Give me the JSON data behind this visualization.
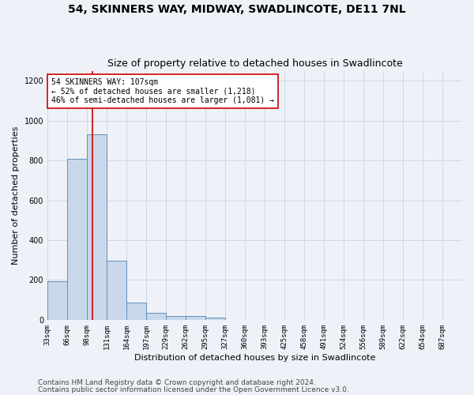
{
  "title": "54, SKINNERS WAY, MIDWAY, SWADLINCOTE, DE11 7NL",
  "subtitle": "Size of property relative to detached houses in Swadlincote",
  "xlabel": "Distribution of detached houses by size in Swadlincote",
  "ylabel": "Number of detached properties",
  "bin_edges": [
    33,
    66,
    98,
    131,
    164,
    197,
    229,
    262,
    295,
    327,
    360,
    393,
    425,
    458,
    491,
    524,
    556,
    589,
    622,
    654,
    687,
    720
  ],
  "bar_heights": [
    195,
    810,
    930,
    295,
    85,
    35,
    20,
    20,
    10,
    0,
    0,
    0,
    0,
    0,
    0,
    0,
    0,
    0,
    0,
    0,
    0
  ],
  "bar_color": "#c8d8ea",
  "bar_edgecolor": "#6090bb",
  "bar_linewidth": 0.7,
  "grid_color": "#c8d4e0",
  "background_color": "#eef2f8",
  "vline_x": 107,
  "vline_color": "#cc0000",
  "vline_linewidth": 1.2,
  "annotation_text": "54 SKINNERS WAY: 107sqm\n← 52% of detached houses are smaller (1,218)\n46% of semi-detached houses are larger (1,081) →",
  "annotation_box_color": "#ffffff",
  "annotation_box_edgecolor": "#cc0000",
  "footnote1": "Contains HM Land Registry data © Crown copyright and database right 2024.",
  "footnote2": "Contains public sector information licensed under the Open Government Licence v3.0.",
  "ylim": [
    0,
    1250
  ],
  "yticks": [
    0,
    200,
    400,
    600,
    800,
    1000,
    1200
  ],
  "title_fontsize": 10,
  "subtitle_fontsize": 9,
  "tick_label_fontsize": 6.5,
  "ylabel_fontsize": 8,
  "xlabel_fontsize": 8,
  "annotation_fontsize": 7,
  "footnote_fontsize": 6.5
}
